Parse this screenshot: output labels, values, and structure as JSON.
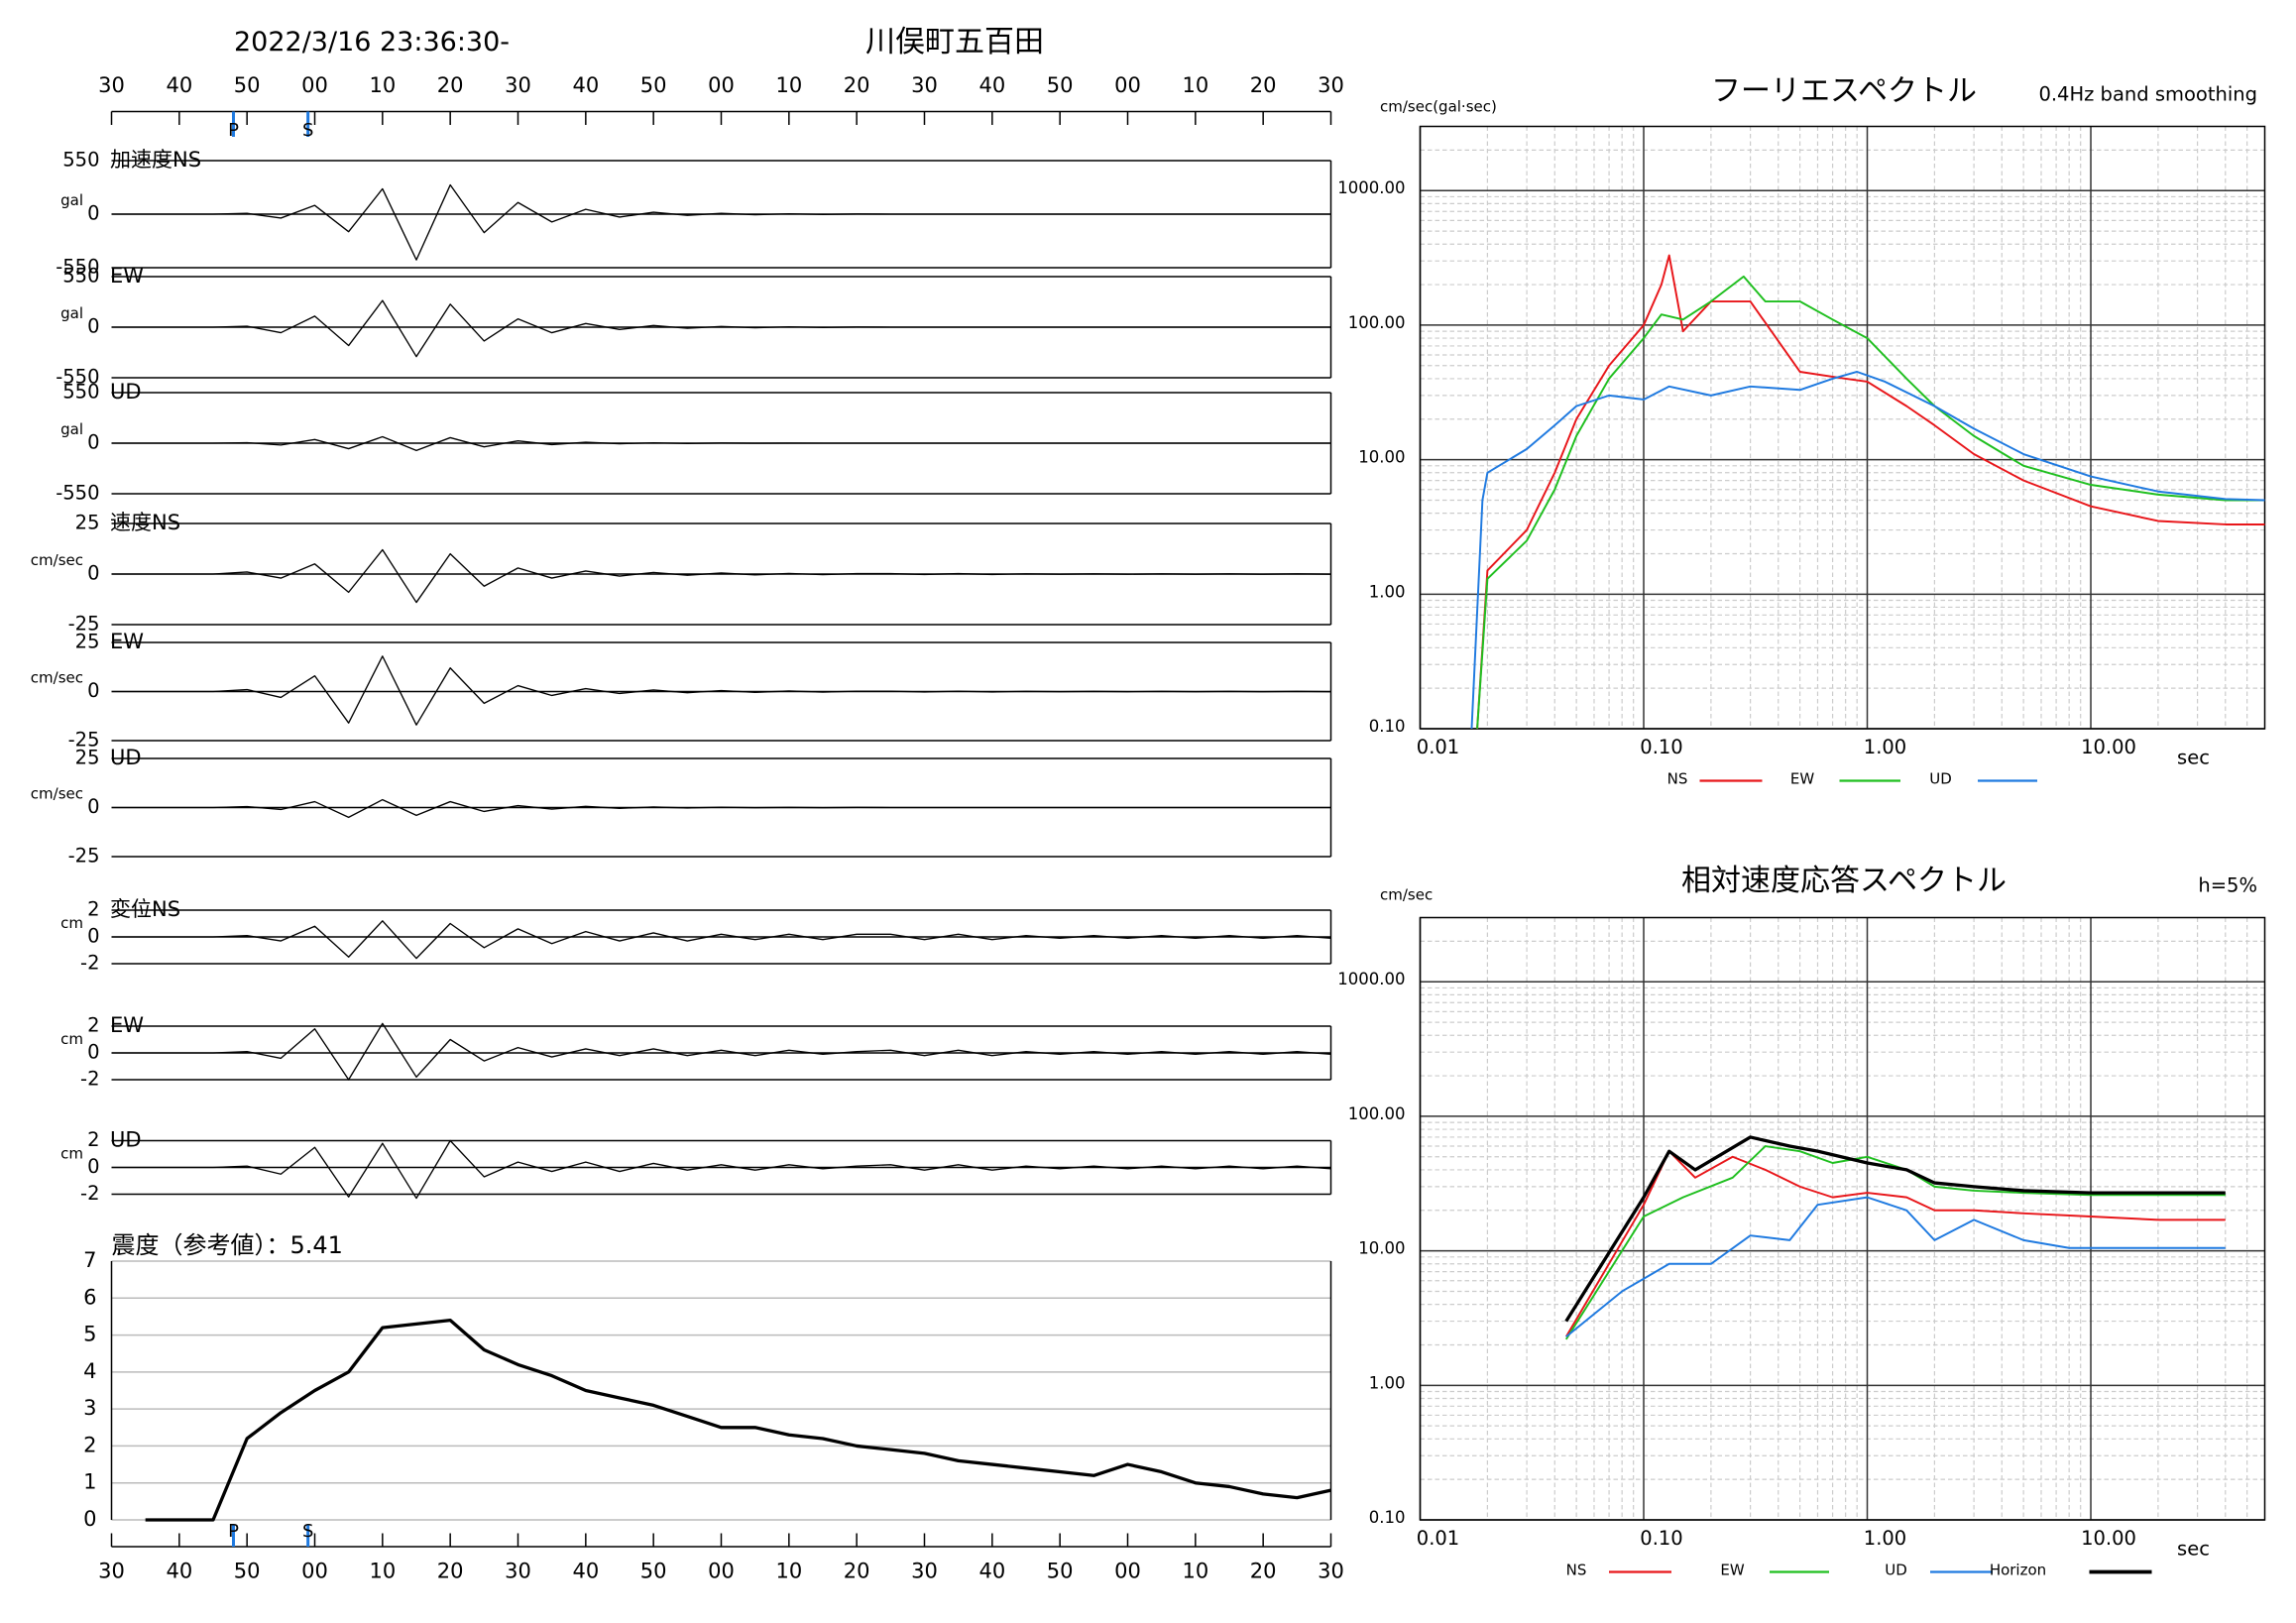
{
  "chart_data": [
    {
      "type": "line",
      "title": "2022/3/16 23:36:30-",
      "subtitle": "川俣町五百田",
      "x": [
        0,
        5,
        10,
        15,
        20,
        25,
        30,
        35,
        40,
        45,
        50,
        55,
        60,
        65,
        70,
        75,
        80,
        85,
        90,
        95,
        100,
        105,
        110,
        115,
        120,
        125,
        130,
        135,
        140,
        145,
        150,
        155,
        160,
        165,
        170,
        175,
        180
      ],
      "xlim": [
        0,
        180
      ],
      "xticks": [
        {
          "value": 0,
          "label": "30"
        },
        {
          "value": 10,
          "label": "40"
        },
        {
          "value": 20,
          "label": "50"
        },
        {
          "value": 30,
          "label": "00"
        },
        {
          "value": 40,
          "label": "10"
        },
        {
          "value": 50,
          "label": "20"
        },
        {
          "value": 60,
          "label": "30"
        },
        {
          "value": 70,
          "label": "40"
        },
        {
          "value": 80,
          "label": "50"
        },
        {
          "value": 90,
          "label": "00"
        },
        {
          "value": 100,
          "label": "10"
        },
        {
          "value": 110,
          "label": "20"
        },
        {
          "value": 120,
          "label": "30"
        },
        {
          "value": 130,
          "label": "40"
        },
        {
          "value": 140,
          "label": "50"
        },
        {
          "value": 150,
          "label": "00"
        },
        {
          "value": 160,
          "label": "10"
        },
        {
          "value": 170,
          "label": "20"
        },
        {
          "value": 180,
          "label": "30"
        }
      ],
      "markers": [
        {
          "label": "P",
          "x": 18
        },
        {
          "label": "S",
          "x": 29
        }
      ],
      "marker_color": "#1f7ae0",
      "color": "#000000",
      "series": [
        {
          "name": "加速度NS",
          "unit": "gal",
          "ylim": [
            -550,
            550
          ],
          "yticks": [
            -550,
            0,
            550
          ],
          "values": [
            0,
            0,
            0,
            0,
            8,
            -40,
            90,
            -180,
            260,
            -470,
            300,
            -190,
            120,
            -80,
            50,
            -30,
            20,
            -12,
            8,
            -6,
            4,
            -3,
            2,
            0,
            0,
            0,
            0,
            0,
            0,
            0,
            0,
            0,
            0,
            0,
            0,
            0,
            0
          ]
        },
        {
          "name": "EW",
          "unit": "gal",
          "ylim": [
            -550,
            550
          ],
          "yticks": [
            -550,
            0,
            550
          ],
          "values": [
            0,
            0,
            0,
            0,
            10,
            -60,
            120,
            -200,
            290,
            -320,
            250,
            -150,
            90,
            -60,
            40,
            -25,
            18,
            -12,
            8,
            -6,
            4,
            -3,
            2,
            0,
            0,
            0,
            0,
            0,
            0,
            0,
            0,
            0,
            0,
            0,
            0,
            0,
            0
          ]
        },
        {
          "name": "UD",
          "unit": "gal",
          "ylim": [
            -550,
            550
          ],
          "yticks": [
            -550,
            0,
            550
          ],
          "values": [
            0,
            0,
            0,
            0,
            5,
            -20,
            40,
            -60,
            70,
            -80,
            60,
            -40,
            25,
            -15,
            10,
            -6,
            4,
            -3,
            2,
            -1,
            1,
            0,
            0,
            0,
            0,
            0,
            0,
            0,
            0,
            0,
            0,
            0,
            0,
            0,
            0,
            0,
            0
          ]
        },
        {
          "name": "速度NS",
          "unit": "cm/sec",
          "ylim": [
            -25,
            25
          ],
          "yticks": [
            -25,
            0,
            25
          ],
          "values": [
            0,
            0,
            0,
            0,
            1,
            -2,
            5,
            -9,
            12,
            -14,
            10,
            -6,
            3,
            -2,
            1.5,
            -1,
            0.8,
            -0.6,
            0.5,
            -0.4,
            0.3,
            -0.3,
            0.2,
            0.2,
            -0.2,
            0.2,
            -0.2,
            0.1,
            -0.1,
            0.1,
            -0.1,
            0.1,
            -0.1,
            0.1,
            -0.1,
            0.1,
            -0.1
          ]
        },
        {
          "name": "EW",
          "unit": "cm/sec",
          "ylim": [
            -25,
            25
          ],
          "yticks": [
            -25,
            0,
            25
          ],
          "values": [
            0,
            0,
            0,
            0,
            1,
            -3,
            8,
            -16,
            18,
            -17,
            12,
            -6,
            3,
            -2,
            1.5,
            -1,
            0.8,
            -0.6,
            0.5,
            -0.4,
            0.3,
            -0.3,
            0.2,
            0.2,
            -0.2,
            0.2,
            -0.2,
            0.1,
            -0.1,
            0.1,
            -0.1,
            0.1,
            -0.1,
            0.1,
            -0.1,
            0.1,
            -0.1
          ]
        },
        {
          "name": "UD",
          "unit": "cm/sec",
          "ylim": [
            -25,
            25
          ],
          "yticks": [
            -25,
            0,
            25
          ],
          "values": [
            0,
            0,
            0,
            0,
            0.5,
            -1,
            3,
            -5,
            4,
            -4,
            3,
            -2,
            1,
            -0.8,
            0.6,
            -0.4,
            0.3,
            -0.2,
            0.2,
            -0.1,
            0.1,
            -0.1,
            0.1,
            0,
            0,
            0,
            0,
            0,
            0,
            0,
            0,
            0,
            0,
            0,
            0,
            0,
            0
          ]
        },
        {
          "name": "変位NS",
          "unit": "cm",
          "ylim": [
            -2,
            2
          ],
          "yticks": [
            -2,
            0,
            2
          ],
          "values": [
            0,
            0,
            0,
            0,
            0.1,
            -0.3,
            0.8,
            -1.5,
            1.2,
            -1.6,
            1,
            -0.8,
            0.6,
            -0.5,
            0.4,
            -0.3,
            0.3,
            -0.3,
            0.2,
            -0.2,
            0.2,
            -0.2,
            0.2,
            0.2,
            -0.2,
            0.2,
            -0.2,
            0.1,
            -0.1,
            0.1,
            -0.1,
            0.1,
            -0.1,
            0.1,
            -0.1,
            0.1,
            -0.1
          ]
        },
        {
          "name": "EW",
          "unit": "cm",
          "ylim": [
            -2,
            2
          ],
          "yticks": [
            -2,
            0,
            2
          ],
          "values": [
            0,
            0,
            0,
            0,
            0.1,
            -0.4,
            1.8,
            -2,
            2.2,
            -1.8,
            1,
            -0.6,
            0.4,
            -0.3,
            0.3,
            -0.2,
            0.3,
            -0.2,
            0.2,
            -0.2,
            0.2,
            -0.1,
            0.1,
            0.2,
            -0.2,
            0.2,
            -0.2,
            0.1,
            -0.1,
            0.1,
            -0.1,
            0.1,
            -0.1,
            0.1,
            -0.1,
            0.1,
            -0.1
          ]
        },
        {
          "name": "UD",
          "unit": "cm",
          "ylim": [
            -2,
            2
          ],
          "yticks": [
            -2,
            0,
            2
          ],
          "values": [
            0,
            0,
            0,
            0,
            0.1,
            -0.5,
            1.5,
            -2.2,
            1.8,
            -2.3,
            2,
            -0.7,
            0.4,
            -0.3,
            0.4,
            -0.3,
            0.3,
            -0.2,
            0.2,
            -0.2,
            0.2,
            -0.1,
            0.1,
            0.2,
            -0.2,
            0.2,
            -0.2,
            0.1,
            -0.1,
            0.1,
            -0.1,
            0.1,
            -0.1,
            0.1,
            -0.1,
            0.1,
            -0.1
          ]
        }
      ]
    },
    {
      "type": "line",
      "title": "震度（参考値）：5.41",
      "color": "#000000",
      "grid": true,
      "x": [
        0,
        5,
        10,
        15,
        20,
        25,
        30,
        35,
        40,
        45,
        50,
        55,
        60,
        65,
        70,
        75,
        80,
        85,
        90,
        95,
        100,
        105,
        110,
        115,
        120,
        125,
        130,
        135,
        140,
        145,
        150,
        155,
        160,
        165,
        170,
        175,
        180
      ],
      "values": [
        null,
        0,
        0,
        0,
        2.2,
        2.9,
        3.5,
        4.0,
        5.2,
        5.3,
        5.4,
        4.6,
        4.2,
        3.9,
        3.5,
        3.3,
        3.1,
        2.8,
        2.5,
        2.5,
        2.3,
        2.2,
        2.0,
        1.9,
        1.8,
        1.6,
        1.5,
        1.4,
        1.3,
        1.2,
        1.5,
        1.3,
        1.0,
        0.9,
        0.7,
        0.6,
        0.8
      ],
      "xlim": [
        0,
        180
      ],
      "xticks": [
        {
          "value": 0,
          "label": "30"
        },
        {
          "value": 10,
          "label": "40"
        },
        {
          "value": 20,
          "label": "50"
        },
        {
          "value": 30,
          "label": "00"
        },
        {
          "value": 40,
          "label": "10"
        },
        {
          "value": 50,
          "label": "20"
        },
        {
          "value": 60,
          "label": "30"
        },
        {
          "value": 70,
          "label": "40"
        },
        {
          "value": 80,
          "label": "50"
        },
        {
          "value": 90,
          "label": "00"
        },
        {
          "value": 100,
          "label": "10"
        },
        {
          "value": 110,
          "label": "20"
        },
        {
          "value": 120,
          "label": "30"
        },
        {
          "value": 130,
          "label": "40"
        },
        {
          "value": 140,
          "label": "50"
        },
        {
          "value": 150,
          "label": "00"
        },
        {
          "value": 160,
          "label": "10"
        },
        {
          "value": 170,
          "label": "20"
        },
        {
          "value": 180,
          "label": "30"
        }
      ],
      "ylim": [
        0,
        7
      ],
      "yticks": [
        0,
        1,
        2,
        3,
        4,
        5,
        6,
        7
      ],
      "markers": [
        {
          "label": "P",
          "x": 18
        },
        {
          "label": "S",
          "x": 29
        }
      ],
      "marker_color": "#1f7ae0"
    },
    {
      "type": "line",
      "title": "フーリエスペクトル",
      "subtitle": "0.4Hz band smoothing",
      "x_label": "sec",
      "y_label": "cm/sec(gal·sec)",
      "log_x": true,
      "log_y": true,
      "grid": true,
      "minor_grid": true,
      "xlim": [
        0.01,
        60
      ],
      "xticks": [
        0.01,
        {
          "value": 0.1,
          "label": "0.10"
        },
        {
          "value": 1,
          "label": "1.00"
        },
        {
          "value": 10,
          "label": "10.00"
        }
      ],
      "ylim": [
        0.1,
        3000
      ],
      "yticks": [
        {
          "value": 0.1,
          "label": "0.10"
        },
        {
          "value": 1,
          "label": "1.00"
        },
        {
          "value": 10,
          "label": "10.00"
        },
        {
          "value": 100,
          "label": "100.00"
        },
        {
          "value": 1000,
          "label": "1000.00"
        }
      ],
      "series": [
        {
          "name": "NS",
          "color": "#e8161a",
          "x": [
            0.018,
            0.02,
            0.03,
            0.04,
            0.05,
            0.07,
            0.1,
            0.12,
            0.13,
            0.15,
            0.2,
            0.3,
            0.5,
            0.8,
            1,
            1.5,
            2,
            3,
            5,
            10,
            20,
            40,
            60
          ],
          "values": [
            0.1,
            1.5,
            3,
            8,
            20,
            50,
            100,
            200,
            330,
            90,
            150,
            150,
            45,
            40,
            38,
            25,
            18,
            11,
            7,
            4.5,
            3.5,
            3.3,
            3.3
          ]
        },
        {
          "name": "EW",
          "color": "#1fbf1f",
          "x": [
            0.018,
            0.02,
            0.03,
            0.04,
            0.05,
            0.07,
            0.1,
            0.12,
            0.15,
            0.2,
            0.28,
            0.35,
            0.5,
            0.7,
            1,
            1.5,
            2,
            3,
            5,
            10,
            20,
            40,
            60
          ],
          "values": [
            0.1,
            1.3,
            2.5,
            6,
            15,
            40,
            80,
            120,
            110,
            150,
            230,
            150,
            150,
            110,
            80,
            40,
            25,
            15,
            9,
            6.5,
            5.5,
            5,
            5
          ]
        },
        {
          "name": "UD",
          "color": "#1f7ae0",
          "x": [
            0.017,
            0.019,
            0.02,
            0.03,
            0.04,
            0.05,
            0.07,
            0.1,
            0.13,
            0.2,
            0.3,
            0.5,
            0.7,
            0.9,
            1.2,
            2,
            3,
            5,
            10,
            20,
            40,
            60
          ],
          "values": [
            0.1,
            5,
            8,
            12,
            18,
            25,
            30,
            28,
            35,
            30,
            35,
            33,
            40,
            45,
            38,
            25,
            17,
            11,
            7.5,
            5.8,
            5.1,
            5
          ]
        }
      ]
    },
    {
      "type": "line",
      "title": "相対速度応答スペクトル",
      "subtitle": "h=5%",
      "x_label": "sec",
      "y_label": "cm/sec",
      "log_x": true,
      "log_y": true,
      "grid": true,
      "minor_grid": true,
      "xlim": [
        0.01,
        60
      ],
      "xticks": [
        0.01,
        {
          "value": 0.1,
          "label": "0.10"
        },
        {
          "value": 1,
          "label": "1.00"
        },
        {
          "value": 10,
          "label": "10.00"
        }
      ],
      "ylim": [
        0.1,
        3000
      ],
      "yticks": [
        {
          "value": 0.1,
          "label": "0.10"
        },
        {
          "value": 1,
          "label": "1.00"
        },
        {
          "value": 10,
          "label": "10.00"
        },
        {
          "value": 100,
          "label": "100.00"
        },
        {
          "value": 1000,
          "label": "1000.00"
        }
      ],
      "series": [
        {
          "name": "NS",
          "color": "#e8161a",
          "x": [
            0.045,
            0.1,
            0.13,
            0.17,
            0.25,
            0.35,
            0.5,
            0.7,
            1,
            1.5,
            2,
            3,
            5,
            10,
            20,
            40
          ],
          "values": [
            2.3,
            22,
            55,
            35,
            50,
            40,
            30,
            25,
            27,
            25,
            20,
            20,
            19,
            18,
            17,
            17
          ]
        },
        {
          "name": "EW",
          "color": "#1fbf1f",
          "x": [
            0.045,
            0.1,
            0.15,
            0.25,
            0.35,
            0.5,
            0.7,
            1,
            1.5,
            2,
            3,
            5,
            10,
            20,
            40
          ],
          "values": [
            2.2,
            18,
            25,
            35,
            60,
            55,
            45,
            50,
            40,
            30,
            28,
            27,
            26,
            26,
            26
          ]
        },
        {
          "name": "UD",
          "color": "#1f7ae0",
          "x": [
            0.045,
            0.08,
            0.13,
            0.2,
            0.3,
            0.45,
            0.6,
            1,
            1.5,
            2,
            3,
            5,
            8,
            20,
            40
          ],
          "values": [
            2.3,
            5,
            8,
            8,
            13,
            12,
            22,
            25,
            20,
            12,
            17,
            12,
            10.5,
            10.5,
            10.5
          ]
        },
        {
          "name": "Horizon",
          "color": "#000000",
          "x": [
            0.045,
            0.1,
            0.13,
            0.17,
            0.3,
            0.45,
            0.6,
            1,
            1.5,
            2,
            3,
            5,
            10,
            20,
            40
          ],
          "values": [
            3,
            25,
            55,
            40,
            70,
            60,
            55,
            45,
            40,
            32,
            30,
            28,
            27,
            27,
            27
          ]
        }
      ]
    }
  ]
}
